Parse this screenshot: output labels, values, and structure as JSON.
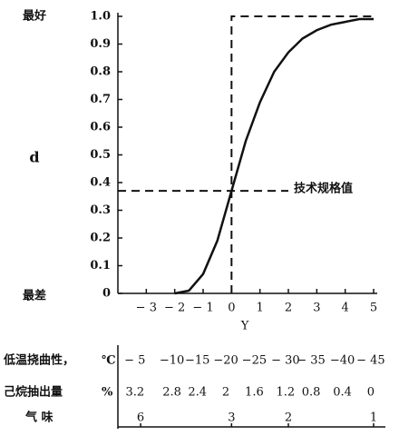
{
  "chart_data": {
    "type": "line",
    "y_top_label": "最好",
    "y_bottom_label": "最差",
    "y_label": "d",
    "x_label": "Y",
    "x": [
      -2,
      -1.5,
      -1,
      -0.5,
      0,
      0.5,
      1,
      1.5,
      2,
      2.5,
      3,
      3.5,
      4,
      4.5,
      5
    ],
    "series": [
      {
        "name": "d",
        "color": "#111111",
        "values": [
          0.0,
          0.01,
          0.07,
          0.19,
          0.37,
          0.55,
          0.69,
          0.8,
          0.87,
          0.92,
          0.95,
          0.97,
          0.98,
          0.99,
          0.99
        ]
      }
    ],
    "xlim": [
      -4,
      5
    ],
    "ylim": [
      0,
      1
    ],
    "xticks": [
      {
        "value": -3,
        "label": "− 3"
      },
      {
        "value": -2,
        "label": "− 2"
      },
      {
        "value": -1,
        "label": "− 1"
      },
      0,
      1,
      2,
      3,
      4,
      5
    ],
    "yticks": [
      0,
      0.1,
      0.2,
      0.3,
      0.4,
      0.5,
      0.6,
      0.7,
      0.8,
      0.9,
      {
        "value": 1,
        "label": "1.0"
      }
    ],
    "dashed": {
      "x": 0,
      "y": 1
    },
    "annotation": {
      "text": "技术规格值",
      "y": 0.37
    },
    "scales": [
      {
        "name": "低温挠曲性，",
        "unit": "℃",
        "x": [
          -3.4,
          -2.1,
          -1.2,
          -0.2,
          0.8,
          1.9,
          2.8,
          3.9,
          4.9
        ],
        "labels": [
          "− 5",
          "−10",
          "−15",
          "−20",
          "−25",
          "− 30",
          "− 35",
          "−40",
          "− 45"
        ]
      },
      {
        "name": "己烷抽出量",
        "unit": "%",
        "x": [
          -3.4,
          -2.1,
          -1.2,
          -0.2,
          0.8,
          1.9,
          2.8,
          3.9,
          4.9
        ],
        "labels": [
          "3.2",
          "2.8",
          "2.4",
          "2",
          "1.6",
          "1.2",
          "0.8",
          "0.4",
          "0"
        ]
      },
      {
        "name": "气 味",
        "x": [
          -3.2,
          0,
          2,
          5
        ],
        "labels": [
          "6",
          "3",
          "2",
          "1"
        ]
      }
    ]
  }
}
